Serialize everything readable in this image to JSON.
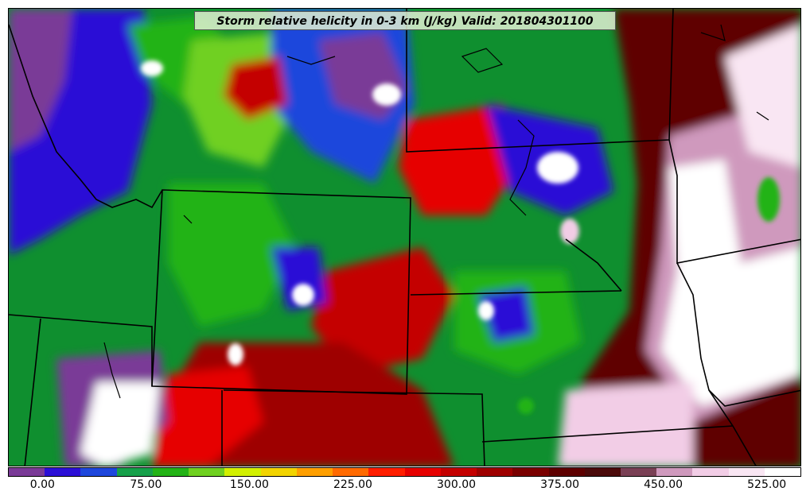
{
  "title": "Storm relative helicity in 0-3 km (J/kg) Valid: 201804301100",
  "colorbar": {
    "colors": [
      "#7a3a97",
      "#2b0fd6",
      "#1e47dc",
      "#16a04a",
      "#23b316",
      "#6fd020",
      "#d2f000",
      "#f2d400",
      "#ff9f00",
      "#ff6a00",
      "#ff1e00",
      "#e60000",
      "#c40000",
      "#9e0000",
      "#7a0000",
      "#5e0000",
      "#4b0a0a",
      "#7a4055",
      "#cf99bd",
      "#f2cde6",
      "#f9e6f3",
      "#ffffff"
    ],
    "tick_labels": [
      "0.00",
      "75.00",
      "150.00",
      "225.00",
      "300.00",
      "375.00",
      "450.00",
      "525.00"
    ],
    "tick_segment_index": [
      2,
      5,
      8,
      11,
      14,
      17,
      20,
      23
    ]
  },
  "legend_scale": {
    "min": -25,
    "max": 550,
    "step": 25
  }
}
